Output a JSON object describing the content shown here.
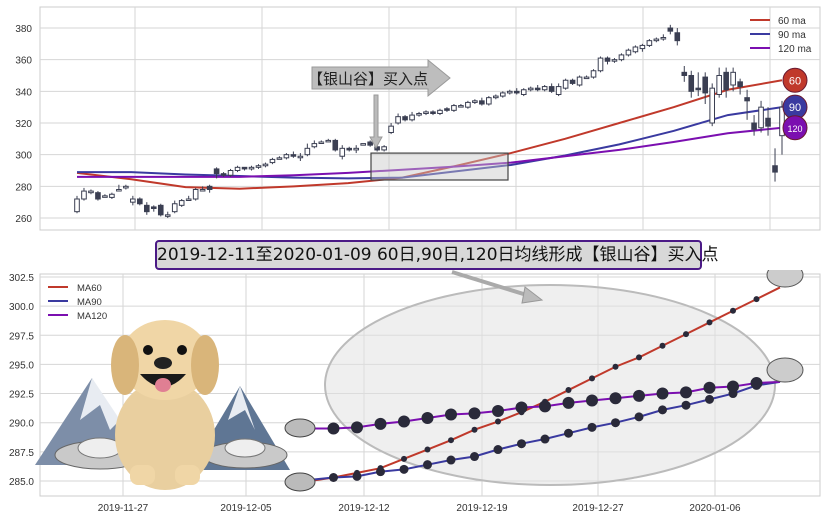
{
  "chart_data": [
    {
      "type": "candlestick",
      "title": "",
      "ylim": [
        252,
        392
      ],
      "yticks": [
        260,
        280,
        300,
        320,
        340,
        360,
        380
      ],
      "grid": true,
      "legend": {
        "placement": "top-right",
        "entries": [
          "60 ma",
          "90 ma",
          "120 ma"
        ]
      },
      "candles_ohlc": [
        [
          264,
          272,
          274,
          263
        ],
        [
          272,
          277,
          279,
          271
        ],
        [
          276,
          277,
          278,
          275
        ],
        [
          276,
          272,
          277,
          271
        ],
        [
          274,
          274,
          275,
          273
        ],
        [
          273,
          275,
          276,
          272
        ],
        [
          278,
          278,
          281,
          277
        ],
        [
          279,
          280,
          281,
          278
        ],
        [
          270,
          272,
          274,
          268
        ],
        [
          272,
          269,
          273,
          268
        ],
        [
          268,
          264,
          270,
          262
        ],
        [
          267,
          266,
          268,
          264
        ],
        [
          268,
          262,
          269,
          261
        ],
        [
          262,
          262,
          264,
          260
        ],
        [
          264,
          269,
          271,
          263
        ],
        [
          268,
          271,
          272,
          267
        ],
        [
          272,
          272,
          274,
          271
        ],
        [
          272,
          278,
          279,
          271
        ],
        [
          278,
          278,
          280,
          277
        ],
        [
          280,
          278,
          281,
          276
        ],
        [
          291,
          288,
          292,
          285
        ],
        [
          288,
          287,
          289,
          286
        ],
        [
          287,
          290,
          291,
          286
        ],
        [
          290,
          292,
          293,
          289
        ],
        [
          292,
          291,
          292,
          290
        ],
        [
          291,
          292,
          293,
          290
        ],
        [
          292,
          293,
          294,
          291
        ],
        [
          293,
          294,
          295,
          292
        ],
        [
          295,
          297,
          298,
          294
        ],
        [
          298,
          298,
          299,
          297
        ],
        [
          298,
          300,
          301,
          297
        ],
        [
          300,
          299,
          302,
          298
        ],
        [
          299,
          299,
          301,
          296
        ],
        [
          300,
          304,
          307,
          299
        ],
        [
          305,
          307,
          309,
          304
        ],
        [
          308,
          308,
          309,
          307
        ],
        [
          309,
          309,
          310,
          308
        ],
        [
          309,
          303,
          310,
          302
        ],
        [
          299,
          304,
          306,
          297
        ],
        [
          304,
          303,
          305,
          302
        ],
        [
          303,
          304,
          306,
          301
        ],
        [
          306,
          307,
          307,
          306
        ],
        [
          308,
          306,
          309,
          305
        ],
        [
          305,
          303,
          306,
          302
        ],
        [
          303,
          305,
          306,
          302
        ],
        [
          314,
          318,
          320,
          313
        ],
        [
          320,
          324,
          326,
          319
        ],
        [
          324,
          322,
          325,
          321
        ],
        [
          322,
          325,
          327,
          321
        ],
        [
          325,
          326,
          327,
          324
        ],
        [
          326,
          327,
          328,
          325
        ],
        [
          327,
          326,
          328,
          325
        ],
        [
          326,
          328,
          329,
          325
        ],
        [
          329,
          328,
          330,
          327
        ],
        [
          328,
          331,
          332,
          327
        ],
        [
          331,
          331,
          332,
          330
        ],
        [
          330,
          333,
          334,
          329
        ],
        [
          333,
          334,
          335,
          332
        ],
        [
          334,
          332,
          336,
          331
        ],
        [
          332,
          336,
          337,
          331
        ],
        [
          336,
          337,
          338,
          335
        ],
        [
          337,
          339,
          340,
          336
        ],
        [
          339,
          340,
          341,
          338
        ],
        [
          340,
          339,
          342,
          338
        ],
        [
          338,
          341,
          342,
          337
        ],
        [
          341,
          342,
          343,
          340
        ],
        [
          342,
          341,
          344,
          340
        ],
        [
          341,
          343,
          344,
          340
        ],
        [
          343,
          340,
          345,
          339
        ],
        [
          338,
          343,
          345,
          337
        ],
        [
          342,
          347,
          348,
          341
        ],
        [
          347,
          345,
          348,
          344
        ],
        [
          344,
          349,
          350,
          343
        ],
        [
          349,
          349,
          350,
          348
        ],
        [
          349,
          353,
          354,
          348
        ],
        [
          353,
          361,
          362,
          352
        ],
        [
          361,
          359,
          362,
          357
        ],
        [
          360,
          360,
          361,
          358
        ],
        [
          360,
          363,
          364,
          359
        ],
        [
          363,
          366,
          367,
          362
        ],
        [
          365,
          368,
          369,
          364
        ],
        [
          367,
          369,
          370,
          365
        ],
        [
          369,
          372,
          373,
          368
        ],
        [
          372,
          373,
          374,
          371
        ],
        [
          374,
          374,
          376,
          372
        ],
        [
          380,
          378,
          382,
          376
        ],
        [
          377,
          372,
          380,
          369
        ],
        [
          352,
          350,
          356,
          346
        ],
        [
          350,
          340,
          353,
          336
        ],
        [
          342,
          341,
          352,
          337
        ],
        [
          349,
          339,
          352,
          332
        ],
        [
          320,
          342,
          345,
          318
        ],
        [
          338,
          350,
          355,
          336
        ],
        [
          352,
          341,
          355,
          336
        ],
        [
          344,
          352,
          355,
          340
        ],
        [
          346,
          343,
          348,
          338
        ],
        [
          336,
          334,
          341,
          322
        ],
        [
          320,
          316,
          325,
          312
        ],
        [
          317,
          330,
          334,
          314
        ],
        [
          323,
          318,
          330,
          312
        ],
        [
          293,
          289,
          304,
          283
        ],
        [
          312,
          330,
          334,
          300
        ]
      ],
      "ma_series": [
        {
          "name": "60 ma",
          "color": "#c0392b",
          "values": [
            288.5,
            284.5,
            279.5,
            278.5,
            280,
            282,
            285.5,
            293,
            301,
            310,
            320,
            330,
            341,
            347
          ]
        },
        {
          "name": "90 ma",
          "color": "#3a3aa0",
          "values": [
            289,
            289,
            287.5,
            286.5,
            285.5,
            285,
            285.5,
            289.5,
            293.5,
            299.5,
            306.5,
            315,
            325,
            330
          ]
        },
        {
          "name": "120 ma",
          "color": "#7b0fb0",
          "values": [
            286,
            286,
            286,
            286,
            287,
            288.5,
            290.5,
            292.5,
            295,
            299,
            303,
            308,
            313.5,
            317
          ]
        }
      ],
      "annotations": {
        "arrow_label": "【银山谷】买入点",
        "region_price_range": [
          284,
          301
        ],
        "end_markers": [
          "60",
          "90",
          "120"
        ]
      }
    },
    {
      "type": "line",
      "title": "2019-12-11至2020-01-09 60日,90日,120日均线形成【银山谷】买入点",
      "ylim": [
        283.7,
        303
      ],
      "yticks": [
        "285.0",
        "287.5",
        "290.0",
        "292.5",
        "295.0",
        "297.5",
        "300.0",
        "302.5"
      ],
      "xticks": [
        "2019-11-27",
        "2019-12-05",
        "2019-12-12",
        "2019-12-19",
        "2019-12-27",
        "2020-01-06"
      ],
      "grid": true,
      "legend": {
        "placement": "top-left",
        "entries": [
          "MA60",
          "MA90",
          "MA120"
        ]
      },
      "series": [
        {
          "name": "MA60",
          "color": "#c0392b",
          "values": [
            285.0,
            285.3,
            285.7,
            286.1,
            286.9,
            287.7,
            288.5,
            289.4,
            290.1,
            290.9,
            291.8,
            292.8,
            293.8,
            294.8,
            295.6,
            296.6,
            297.6,
            298.6,
            299.6,
            300.6,
            301.6
          ]
        },
        {
          "name": "MA90",
          "color": "#3a3aa0",
          "values": [
            285.1,
            285.3,
            285.4,
            285.8,
            286.0,
            286.4,
            286.8,
            287.1,
            287.7,
            288.2,
            288.6,
            289.1,
            289.6,
            290.0,
            290.5,
            291.1,
            291.5,
            292.0,
            292.5,
            293.2,
            293.5
          ]
        },
        {
          "name": "MA120",
          "color": "#7b0fb0",
          "values": [
            289.5,
            289.5,
            289.6,
            289.9,
            290.1,
            290.4,
            290.7,
            290.8,
            291.0,
            291.3,
            291.4,
            291.7,
            291.9,
            292.1,
            292.3,
            292.5,
            292.6,
            293.0,
            293.1,
            293.4,
            293.5
          ]
        }
      ]
    }
  ]
}
